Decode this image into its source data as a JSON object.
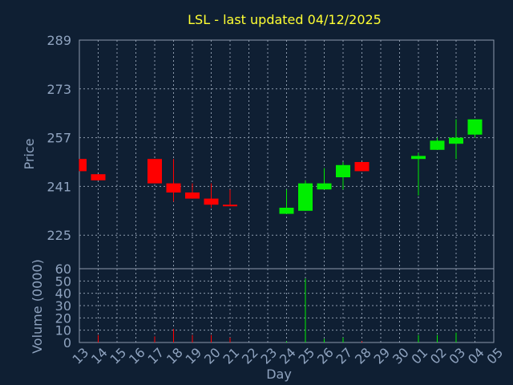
{
  "chart_data": {
    "type": "candlestick",
    "title": "LSL - last updated 04/12/2025",
    "xlabel": "Day",
    "price_panel": {
      "ylabel": "Price",
      "ylim": [
        214,
        289
      ],
      "yticks": [
        289,
        273,
        257,
        241,
        225
      ],
      "grid": true
    },
    "volume_panel": {
      "ylabel": "Volume (0000)",
      "ylim": [
        0,
        60
      ],
      "yticks": [
        0,
        10,
        20,
        30,
        40,
        50,
        60
      ],
      "grid": true
    },
    "categories": [
      "13",
      "14",
      "15",
      "16",
      "17",
      "18",
      "19",
      "20",
      "21",
      "22",
      "23",
      "24",
      "25",
      "26",
      "27",
      "28",
      "29",
      "30",
      "01",
      "02",
      "03",
      "04",
      "05"
    ],
    "candles": [
      {
        "day": "13",
        "open": 250,
        "close": 246,
        "high": 250,
        "low": 246,
        "volume": 0
      },
      {
        "day": "14",
        "open": 245,
        "close": 243,
        "high": 245,
        "low": 243,
        "volume": 6
      },
      {
        "day": "17",
        "open": 250,
        "close": 242,
        "high": 250,
        "low": 242,
        "volume": 5
      },
      {
        "day": "18",
        "open": 242,
        "close": 239,
        "high": 250,
        "low": 236,
        "volume": 11
      },
      {
        "day": "19",
        "open": 239,
        "close": 237,
        "high": 242,
        "low": 237,
        "volume": 6
      },
      {
        "day": "20",
        "open": 237,
        "close": 235,
        "high": 242,
        "low": 234,
        "volume": 6
      },
      {
        "day": "21",
        "open": 235,
        "close": 234.5,
        "high": 240,
        "low": 234.5,
        "volume": 4
      },
      {
        "day": "24",
        "open": 232,
        "close": 234,
        "high": 240,
        "low": 232,
        "volume": 1
      },
      {
        "day": "25",
        "open": 233,
        "close": 242,
        "high": 243,
        "low": 233,
        "volume": 52
      },
      {
        "day": "26",
        "open": 240,
        "close": 242,
        "high": 247,
        "low": 240,
        "volume": 3
      },
      {
        "day": "27",
        "open": 244,
        "close": 248,
        "high": 249,
        "low": 240,
        "volume": 4
      },
      {
        "day": "28",
        "open": 249,
        "close": 246,
        "high": 249,
        "low": 246,
        "volume": 1
      },
      {
        "day": "01",
        "open": 250,
        "close": 251,
        "high": 252,
        "low": 238,
        "volume": 6
      },
      {
        "day": "02",
        "open": 253,
        "close": 256,
        "high": 257,
        "low": 253,
        "volume": 6
      },
      {
        "day": "03",
        "open": 255,
        "close": 257,
        "high": 263,
        "low": 250,
        "volume": 8
      },
      {
        "day": "04",
        "open": 258,
        "close": 263,
        "high": 263,
        "low": 257,
        "volume": 0
      }
    ],
    "colors": {
      "background": "#0f1f33",
      "grid": "#8c9aac",
      "up": "#00ee00",
      "down": "#ff0000",
      "text": "#8fa3bf",
      "title": "#ffff33"
    }
  }
}
